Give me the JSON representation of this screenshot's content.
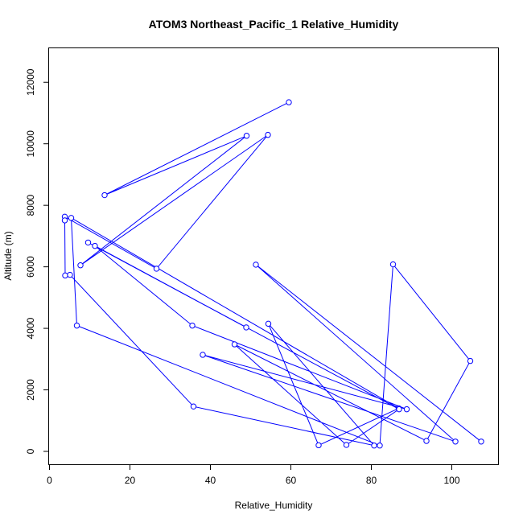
{
  "chart_data": {
    "type": "line",
    "title": "ATOM3 Northeast_Pacific_1 Relative_Humidity",
    "xlabel": "Relative_Humidity",
    "ylabel": "Altitude (m)",
    "xlim": [
      0,
      110
    ],
    "ylim": [
      0,
      13000
    ],
    "x_ticks": [
      0,
      20,
      40,
      60,
      80,
      100
    ],
    "y_ticks": [
      0,
      2000,
      4000,
      6000,
      8000,
      10000,
      12000
    ],
    "line_color": "#0000ff",
    "marker": "open-circle",
    "grid": false,
    "points": [
      {
        "x": 59.5,
        "y": 11350
      },
      {
        "x": 13.7,
        "y": 8330
      },
      {
        "x": 49.0,
        "y": 10260
      },
      {
        "x": 7.7,
        "y": 6050
      },
      {
        "x": 54.3,
        "y": 10290
      },
      {
        "x": 26.6,
        "y": 5940
      },
      {
        "x": 3.8,
        "y": 7630
      },
      {
        "x": 3.8,
        "y": 7510
      },
      {
        "x": 3.9,
        "y": 5720
      },
      {
        "x": 5.1,
        "y": 5740
      },
      {
        "x": 35.8,
        "y": 1460
      },
      {
        "x": 80.7,
        "y": 190
      },
      {
        "x": 54.4,
        "y": 4150
      },
      {
        "x": 66.9,
        "y": 200
      },
      {
        "x": 86.8,
        "y": 1400
      },
      {
        "x": 5.4,
        "y": 7590
      },
      {
        "x": 6.8,
        "y": 4090
      },
      {
        "x": 82.1,
        "y": 190
      },
      {
        "x": 85.4,
        "y": 6080
      },
      {
        "x": 104.6,
        "y": 2940
      },
      {
        "x": 93.7,
        "y": 340
      },
      {
        "x": 46.0,
        "y": 3480
      },
      {
        "x": 73.8,
        "y": 210
      },
      {
        "x": 86.9,
        "y": 1370
      },
      {
        "x": 9.6,
        "y": 6790
      },
      {
        "x": 48.9,
        "y": 4030
      },
      {
        "x": 11.3,
        "y": 6680
      },
      {
        "x": 35.5,
        "y": 4090
      },
      {
        "x": 88.8,
        "y": 1370
      },
      {
        "x": 38.1,
        "y": 3140
      },
      {
        "x": 100.9,
        "y": 320
      },
      {
        "x": 51.3,
        "y": 6070
      },
      {
        "x": 107.3,
        "y": 320
      }
    ]
  }
}
